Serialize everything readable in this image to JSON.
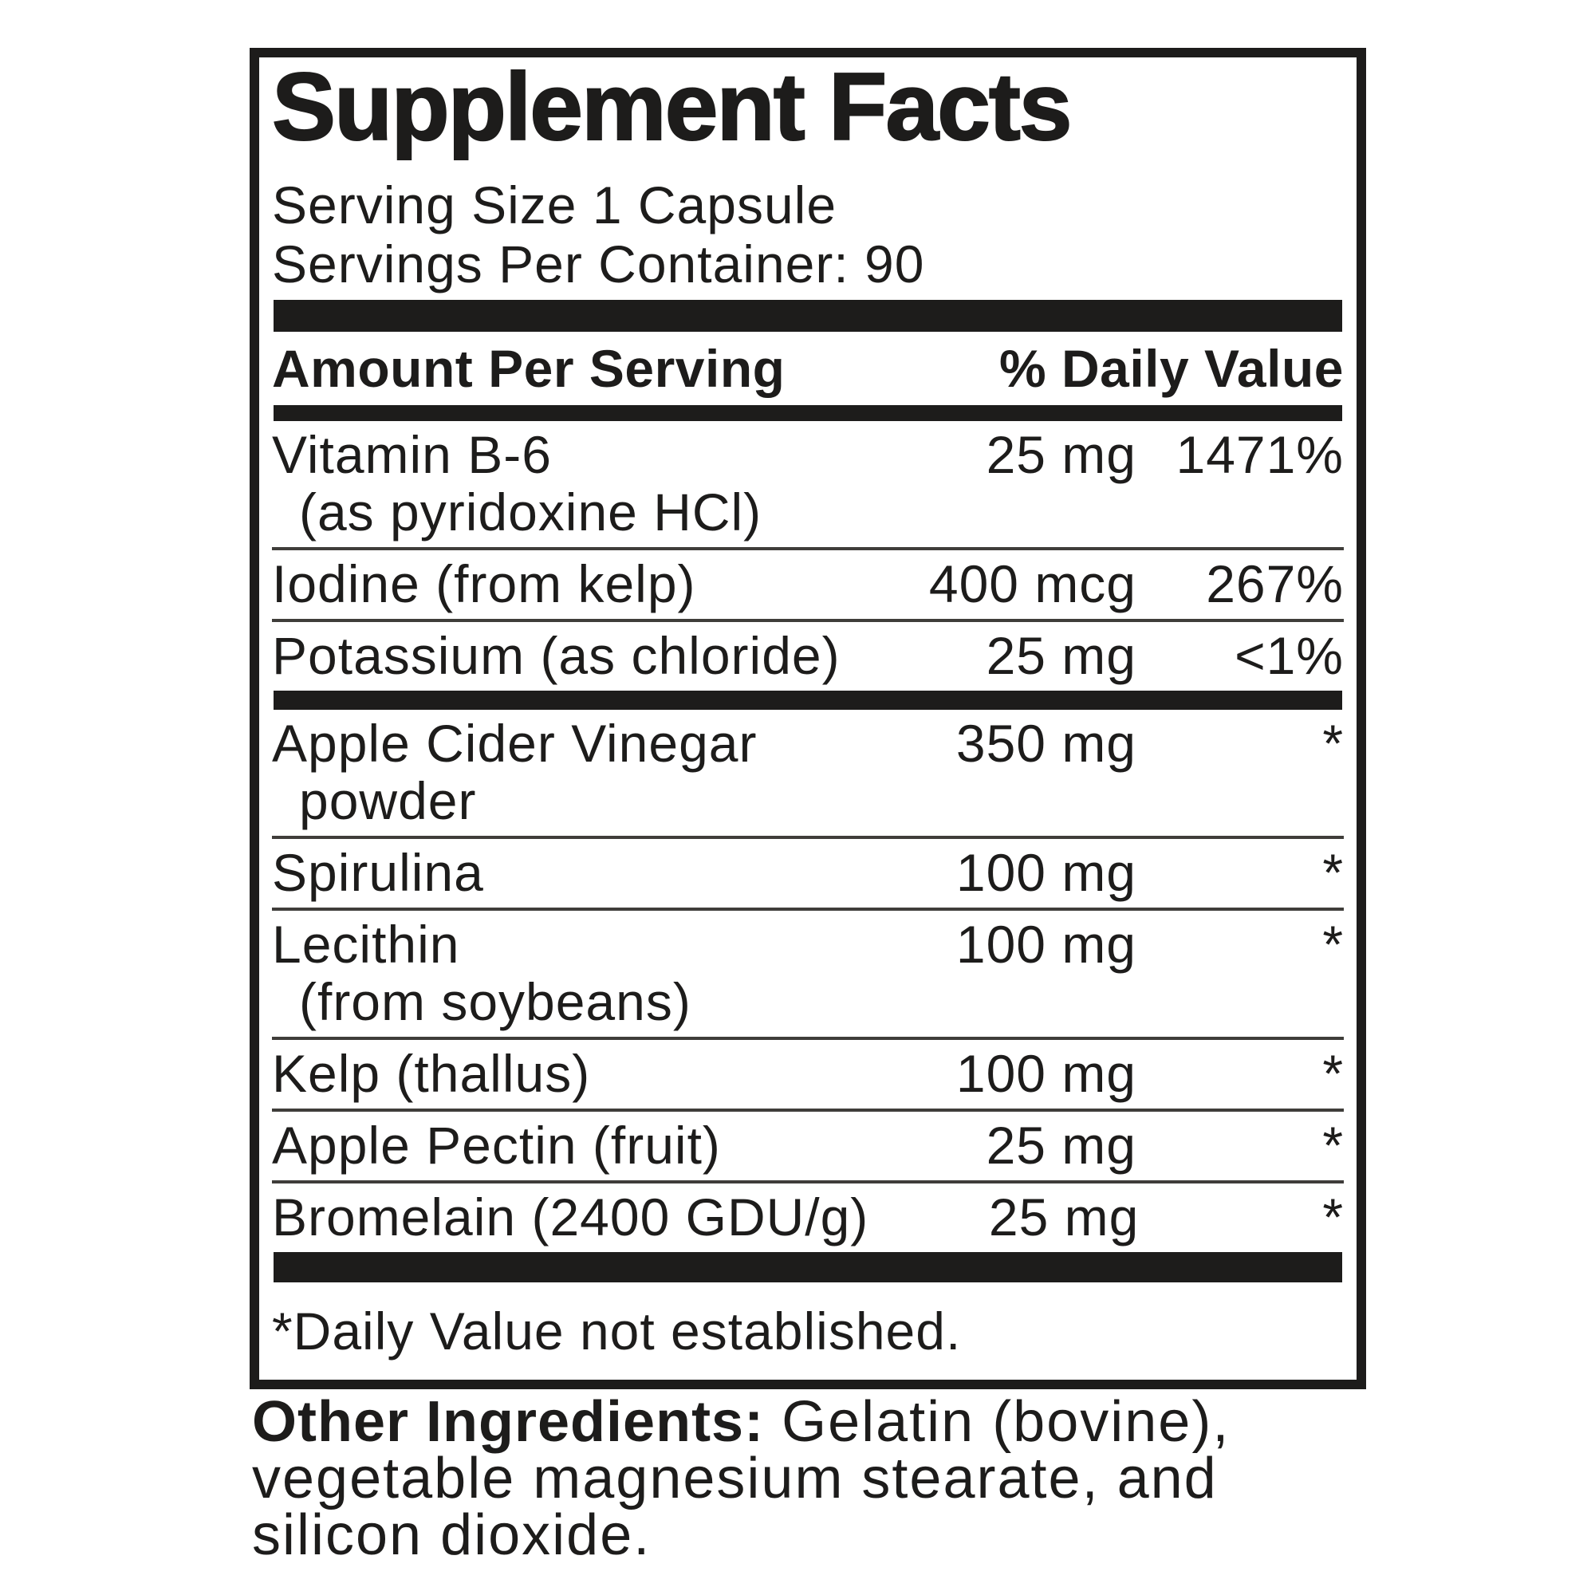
{
  "label": {
    "title": "Supplement Facts",
    "serving_size": "Serving Size 1 Capsule",
    "servings_per_container": "Servings Per Container: 90",
    "header": {
      "amount_col": "Amount Per Serving",
      "dv_col": "% Daily Value"
    },
    "rows": [
      {
        "name": "Vitamin B-6",
        "sub": "(as pyridoxine HCl)",
        "amount": "25 mg",
        "dv": "1471%"
      },
      {
        "name": "Iodine (from kelp)",
        "amount": "400 mcg",
        "dv": "267%"
      },
      {
        "name": "Potassium (as chloride)",
        "amount": "25 mg",
        "dv": "<1%"
      },
      {
        "name": "Apple Cider Vinegar",
        "sub": "powder",
        "amount": "350 mg",
        "dv": "*"
      },
      {
        "name": "Spirulina",
        "amount": "100 mg",
        "dv": "*"
      },
      {
        "name": "Lecithin",
        "sub": "(from soybeans)",
        "amount": "100 mg",
        "dv": "*"
      },
      {
        "name": "Kelp (thallus)",
        "amount": "100 mg",
        "dv": "*"
      },
      {
        "name": "Apple Pectin (fruit)",
        "amount": "25 mg",
        "dv": "*"
      },
      {
        "name": "Bromelain (2400 GDU/g)",
        "amount": "25 mg",
        "dv": "*"
      }
    ],
    "footnote": "*Daily Value not established."
  },
  "other_ingredients": {
    "label": "Other Ingredients:",
    "line1_rest": " Gelatin (bovine),",
    "line2": "vegetable magnesium stearate, and",
    "line3": "silicon dioxide."
  },
  "colors": {
    "ink": "#1d1c1b",
    "rule": "#3f3d3a",
    "bg": "#ffffff"
  }
}
